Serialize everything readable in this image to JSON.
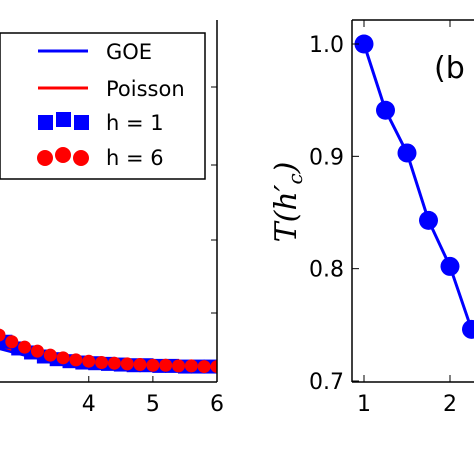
{
  "chart_data": [
    {
      "type": "line",
      "panel": "left",
      "title": "",
      "xlabel": "",
      "ylabel": "",
      "xlim": [
        2.6,
        6.0
      ],
      "ylim": [
        -0.02,
        0.5
      ],
      "x_tick_labels": [
        "4",
        "5",
        "6"
      ],
      "x_ticks": [
        4,
        5,
        6
      ],
      "grid": false,
      "legend_position": "top-right",
      "legend": [
        {
          "label": "GOE",
          "kind": "line",
          "color": "#0000ff"
        },
        {
          "label": "Poisson",
          "kind": "line",
          "color": "#ff0000"
        },
        {
          "label": "h = 1",
          "kind": "square-markers",
          "color": "#0000ff"
        },
        {
          "label": "h = 6",
          "kind": "circle-markers",
          "color": "#ff0000"
        }
      ],
      "series": [
        {
          "name": "GOE",
          "style": "line",
          "color": "#0000ff",
          "x": [
            2.6,
            3.0,
            3.4,
            3.8,
            4.2,
            4.6,
            5.0,
            5.4,
            5.8,
            6.0
          ],
          "y": [
            0.03,
            0.02,
            0.012,
            0.008,
            0.006,
            0.005,
            0.004,
            0.003,
            0.003,
            0.003
          ]
        },
        {
          "name": "Poisson",
          "style": "line",
          "color": "#ff0000",
          "x": [
            2.6,
            3.0,
            3.4,
            3.8,
            4.2,
            4.6,
            5.0,
            5.4,
            5.8,
            6.0
          ],
          "y": [
            0.035,
            0.022,
            0.014,
            0.009,
            0.007,
            0.005,
            0.004,
            0.003,
            0.003,
            0.003
          ]
        },
        {
          "name": "h = 1",
          "style": "square",
          "color": "#0000ff",
          "x": [
            2.7,
            2.9,
            3.1,
            3.3,
            3.5,
            3.7,
            3.9,
            4.1,
            4.3,
            4.5,
            4.7,
            4.9,
            5.1,
            5.3,
            5.5,
            5.7,
            5.9
          ],
          "y": [
            0.04,
            0.03,
            0.024,
            0.018,
            0.014,
            0.011,
            0.009,
            0.008,
            0.007,
            0.006,
            0.005,
            0.005,
            0.004,
            0.004,
            0.003,
            0.003,
            0.003
          ]
        },
        {
          "name": "h = 6",
          "style": "circle",
          "color": "#ff0000",
          "x": [
            2.6,
            2.8,
            3.0,
            3.2,
            3.4,
            3.6,
            3.8,
            4.0,
            4.2,
            4.4,
            4.6,
            4.8,
            5.0,
            5.2,
            5.4,
            5.6,
            5.8,
            6.0
          ],
          "y": [
            0.05,
            0.04,
            0.032,
            0.026,
            0.02,
            0.016,
            0.013,
            0.011,
            0.009,
            0.008,
            0.007,
            0.006,
            0.005,
            0.005,
            0.004,
            0.004,
            0.003,
            0.003
          ]
        }
      ]
    },
    {
      "type": "line",
      "panel": "right",
      "panel_label": "(b",
      "title": "",
      "xlabel": "",
      "ylabel": "T(h'_c)",
      "xlim": [
        0.85,
        2.25
      ],
      "ylim": [
        0.695,
        1.02
      ],
      "x_tick_labels": [
        "1",
        "2"
      ],
      "x_ticks": [
        1,
        2
      ],
      "y_tick_labels": [
        "0.7",
        "0.8",
        "0.9",
        "1.0"
      ],
      "y_ticks": [
        0.7,
        0.8,
        0.9,
        1.0
      ],
      "grid": false,
      "series": [
        {
          "name": "",
          "style": "line-circle",
          "color": "#0000ff",
          "x": [
            1.0,
            1.25,
            1.5,
            1.75,
            2.0,
            2.25
          ],
          "y": [
            1.0,
            0.941,
            0.903,
            0.843,
            0.802,
            0.746
          ]
        }
      ]
    }
  ]
}
